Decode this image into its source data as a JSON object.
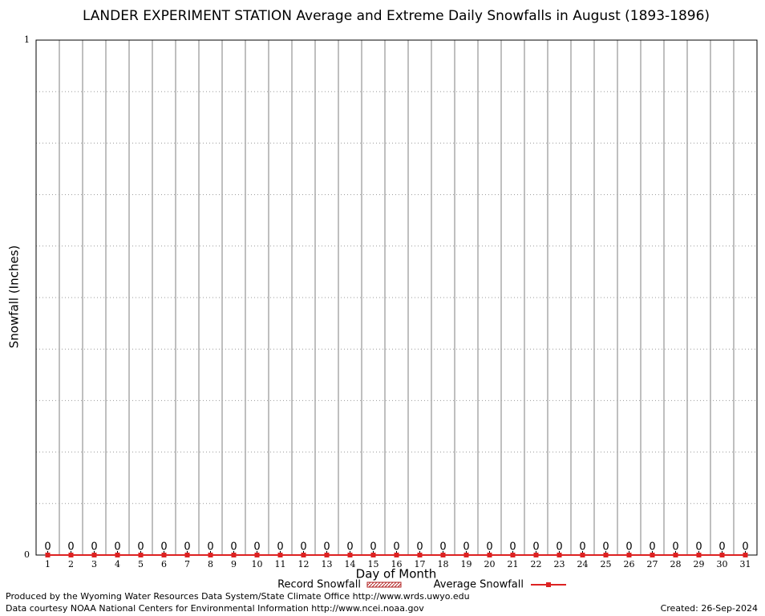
{
  "chart_data": {
    "type": "bar_line",
    "title": "LANDER EXPERIMENT STATION Average and Extreme Daily Snowfalls in August (1893-1896)",
    "x_label": "Day of Month",
    "y_label": "Snowfall (Inches)",
    "categories": [
      1,
      2,
      3,
      4,
      5,
      6,
      7,
      8,
      9,
      10,
      11,
      12,
      13,
      14,
      15,
      16,
      17,
      18,
      19,
      20,
      21,
      22,
      23,
      24,
      25,
      26,
      27,
      28,
      29,
      30,
      31
    ],
    "series": [
      {
        "name": "Record Snowfall",
        "color": "#b22222",
        "style": "hatched-bar",
        "values": [
          0,
          0,
          0,
          0,
          0,
          0,
          0,
          0,
          0,
          0,
          0,
          0,
          0,
          0,
          0,
          0,
          0,
          0,
          0,
          0,
          0,
          0,
          0,
          0,
          0,
          0,
          0,
          0,
          0,
          0,
          0
        ]
      },
      {
        "name": "Average Snowfall",
        "color": "#dd2222",
        "style": "line-marker",
        "values": [
          0,
          0,
          0,
          0,
          0,
          0,
          0,
          0,
          0,
          0,
          0,
          0,
          0,
          0,
          0,
          0,
          0,
          0,
          0,
          0,
          0,
          0,
          0,
          0,
          0,
          0,
          0,
          0,
          0,
          0,
          0
        ]
      }
    ],
    "ylim": [
      0,
      1
    ],
    "yticks": [
      0,
      1
    ],
    "y_minor_grid": [
      0.1,
      0.2,
      0.3,
      0.4,
      0.5,
      0.6,
      0.7,
      0.8,
      0.9
    ],
    "footer": {
      "left": [
        "Produced by the Wyoming Water Resources Data System/State Climate Office http://www.wrds.uwyo.edu",
        "Data courtesy NOAA National Centers for Environmental Information http://www.ncei.noaa.gov"
      ],
      "right": "Created:  26-Sep-2024"
    }
  }
}
